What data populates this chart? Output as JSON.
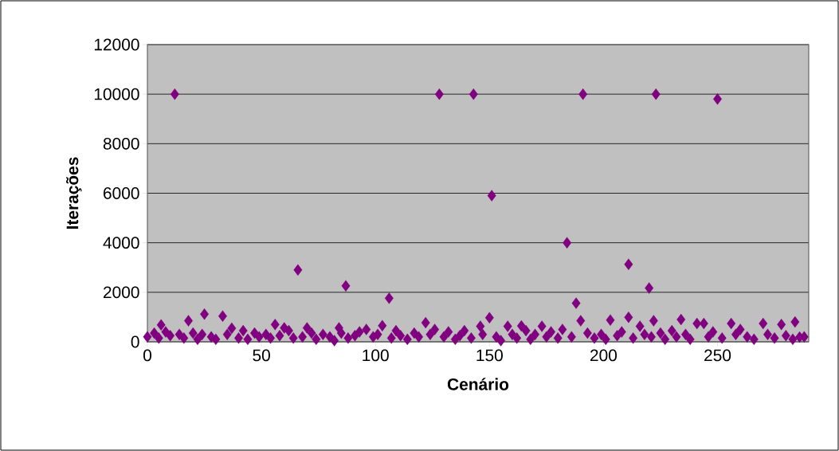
{
  "chart_data": {
    "type": "scatter",
    "xlabel": "Cenário",
    "ylabel": "Iterações",
    "xlim": [
      0,
      290
    ],
    "xticks": [
      0,
      50,
      100,
      150,
      200,
      250
    ],
    "ylim": [
      0,
      12000
    ],
    "yticks": [
      0,
      2000,
      4000,
      6000,
      8000,
      10000,
      12000
    ],
    "grid": "y",
    "marker": "diamond",
    "series": [
      {
        "color": "#800080",
        "x": [
          0,
          3,
          5,
          6,
          8,
          10,
          12,
          14,
          16,
          18,
          20,
          22,
          24,
          25,
          28,
          30,
          33,
          35,
          37,
          40,
          42,
          44,
          47,
          49,
          52,
          54,
          56,
          58,
          60,
          62,
          64,
          66,
          68,
          70,
          72,
          74,
          77,
          80,
          82,
          84,
          85,
          87,
          88,
          91,
          93,
          96,
          99,
          101,
          103,
          106,
          107,
          109,
          111,
          114,
          117,
          119,
          122,
          124,
          126,
          128,
          130,
          132,
          135,
          137,
          139,
          142,
          143,
          146,
          147,
          150,
          151,
          153,
          155,
          158,
          160,
          162,
          164,
          166,
          168,
          170,
          173,
          175,
          177,
          180,
          182,
          184,
          186,
          188,
          190,
          191,
          193,
          196,
          199,
          201,
          203,
          206,
          208,
          211,
          211,
          213,
          216,
          218,
          220,
          221,
          222,
          223,
          225,
          227,
          230,
          232,
          234,
          236,
          238,
          241,
          244,
          246,
          248,
          250,
          252,
          256,
          258,
          260,
          263,
          266,
          270,
          272,
          275,
          278,
          280,
          283,
          284,
          286,
          288
        ],
        "values": [
          200,
          350,
          150,
          680,
          400,
          250,
          10000,
          300,
          150,
          850,
          350,
          100,
          300,
          1120,
          200,
          100,
          1040,
          300,
          550,
          150,
          450,
          100,
          350,
          200,
          300,
          150,
          700,
          250,
          560,
          450,
          150,
          2900,
          200,
          560,
          350,
          100,
          300,
          200,
          50,
          560,
          350,
          2260,
          150,
          250,
          400,
          500,
          200,
          300,
          650,
          1760,
          150,
          450,
          250,
          100,
          350,
          200,
          770,
          300,
          500,
          10000,
          200,
          400,
          100,
          250,
          450,
          150,
          10000,
          630,
          300,
          970,
          5900,
          200,
          50,
          630,
          300,
          150,
          640,
          450,
          100,
          300,
          630,
          200,
          400,
          150,
          500,
          4000,
          200,
          1560,
          850,
          10000,
          350,
          150,
          300,
          100,
          880,
          250,
          400,
          990,
          3130,
          150,
          630,
          300,
          2170,
          200,
          850,
          10000,
          350,
          100,
          450,
          200,
          900,
          300,
          100,
          740,
          740,
          200,
          400,
          9800,
          150,
          740,
          300,
          500,
          200,
          100,
          740,
          300,
          150,
          700,
          250,
          100,
          800,
          190,
          200
        ]
      }
    ]
  }
}
